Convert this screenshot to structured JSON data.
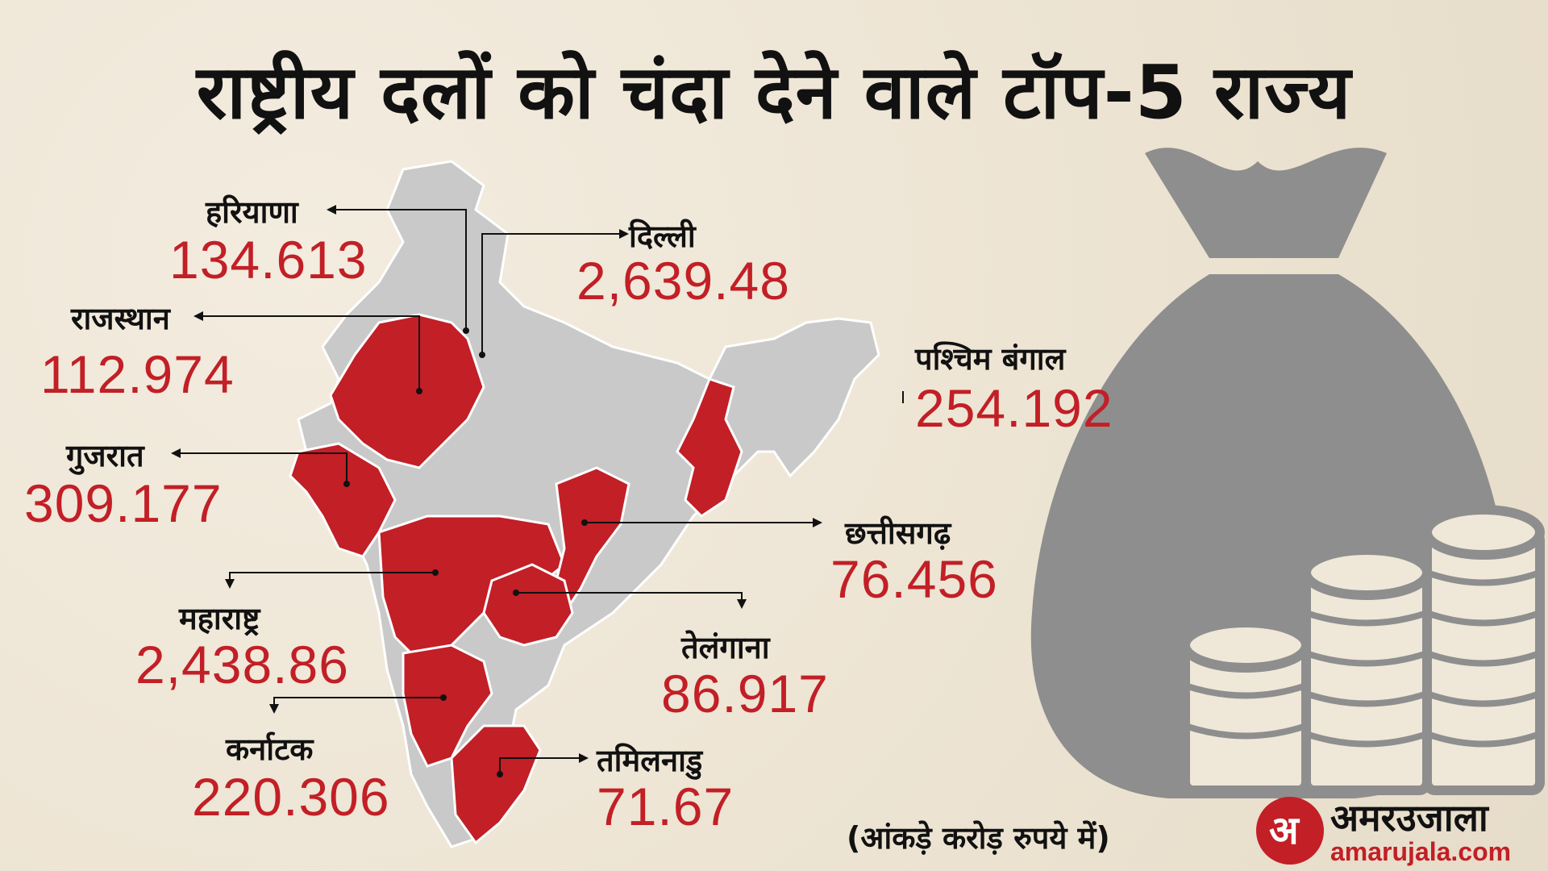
{
  "title": "राष्ट्रीय दलों को चंदा देने वाले टॉप-5 राज्य",
  "note": "(आंकड़े करोड़ रुपये में)",
  "logo": {
    "hindi": "अमरउजाला",
    "english": "amarujala.com",
    "mark": "अ"
  },
  "colors": {
    "highlight": "#c21f26",
    "map_base": "#c9c9c9",
    "illustration": "#8e8e8e"
  },
  "states": [
    {
      "name": "हरियाणा",
      "value": "134.613"
    },
    {
      "name": "दिल्ली",
      "value": "2,639.48"
    },
    {
      "name": "राजस्थान",
      "value": "112.974"
    },
    {
      "name": "पश्चिम बंगाल",
      "value": "254.192"
    },
    {
      "name": "गुजरात",
      "value": "309.177"
    },
    {
      "name": "छत्तीसगढ़",
      "value": "76.456"
    },
    {
      "name": "महाराष्ट्र",
      "value": "2,438.86"
    },
    {
      "name": "तेलंगाना",
      "value": "86.917"
    },
    {
      "name": "कर्नाटक",
      "value": "220.306"
    },
    {
      "name": "तमिलनाडु",
      "value": "71.67"
    }
  ]
}
